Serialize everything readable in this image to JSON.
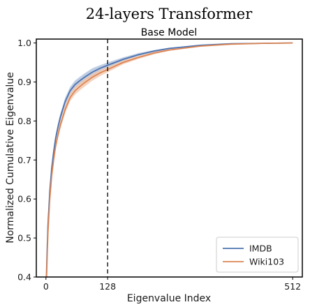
{
  "chart_data": {
    "type": "line",
    "title": "24-layers Transformer",
    "subtitle": "Base Model",
    "xlabel": "Eigenvalue Index",
    "ylabel": "Normalized Cumulative Eigenvalue",
    "xlim": [
      -20,
      532
    ],
    "ylim": [
      0.4,
      1.01
    ],
    "xticks": [
      0,
      128,
      512
    ],
    "yticks": [
      0.4,
      0.5,
      0.6,
      0.7,
      0.8,
      0.9,
      1.0
    ],
    "ytick_labels": [
      "0.4",
      "0.5",
      "0.6",
      "0.7",
      "0.8",
      "0.9",
      "1.0"
    ],
    "vline": 128,
    "legend_position": "lower-right",
    "grid": false,
    "series": [
      {
        "name": "IMDB",
        "color": "#4c72b0",
        "band_color": "#a9bcd9",
        "x": [
          1,
          2,
          4,
          8,
          12,
          16,
          20,
          25,
          30,
          40,
          50,
          60,
          70,
          80,
          96,
          112,
          128,
          160,
          192,
          224,
          256,
          320,
          384,
          448,
          512
        ],
        "y": [
          0.4,
          0.45,
          0.53,
          0.62,
          0.68,
          0.72,
          0.755,
          0.785,
          0.81,
          0.85,
          0.877,
          0.893,
          0.903,
          0.912,
          0.925,
          0.935,
          0.943,
          0.958,
          0.97,
          0.979,
          0.986,
          0.994,
          0.998,
          0.999,
          1.0
        ],
        "y_lower": [
          0.4,
          0.44,
          0.52,
          0.61,
          0.67,
          0.71,
          0.745,
          0.775,
          0.8,
          0.84,
          0.867,
          0.883,
          0.893,
          0.902,
          0.915,
          0.927,
          0.936,
          0.953,
          0.966,
          0.976,
          0.984,
          0.993,
          0.997,
          0.999,
          1.0
        ],
        "y_upper": [
          0.4,
          0.46,
          0.54,
          0.63,
          0.69,
          0.73,
          0.765,
          0.795,
          0.82,
          0.86,
          0.887,
          0.903,
          0.913,
          0.922,
          0.935,
          0.943,
          0.95,
          0.963,
          0.974,
          0.982,
          0.988,
          0.995,
          0.998,
          0.999,
          1.0
        ]
      },
      {
        "name": "Wiki103",
        "color": "#dd8452",
        "band_color": "#f0c3a7",
        "x": [
          1,
          2,
          4,
          8,
          12,
          16,
          20,
          25,
          30,
          40,
          50,
          60,
          70,
          80,
          96,
          112,
          128,
          160,
          192,
          224,
          256,
          320,
          384,
          448,
          512
        ],
        "y": [
          0.38,
          0.43,
          0.51,
          0.6,
          0.66,
          0.7,
          0.735,
          0.765,
          0.79,
          0.83,
          0.86,
          0.877,
          0.888,
          0.898,
          0.912,
          0.923,
          0.932,
          0.95,
          0.963,
          0.974,
          0.982,
          0.992,
          0.997,
          0.999,
          1.0
        ],
        "y_lower": [
          0.38,
          0.42,
          0.5,
          0.59,
          0.65,
          0.69,
          0.725,
          0.755,
          0.78,
          0.82,
          0.85,
          0.867,
          0.878,
          0.888,
          0.903,
          0.915,
          0.925,
          0.945,
          0.959,
          0.971,
          0.98,
          0.991,
          0.996,
          0.999,
          1.0
        ],
        "y_upper": [
          0.38,
          0.44,
          0.52,
          0.61,
          0.67,
          0.71,
          0.745,
          0.775,
          0.8,
          0.84,
          0.87,
          0.887,
          0.898,
          0.908,
          0.921,
          0.931,
          0.939,
          0.955,
          0.967,
          0.977,
          0.984,
          0.993,
          0.997,
          0.999,
          1.0
        ]
      }
    ]
  }
}
